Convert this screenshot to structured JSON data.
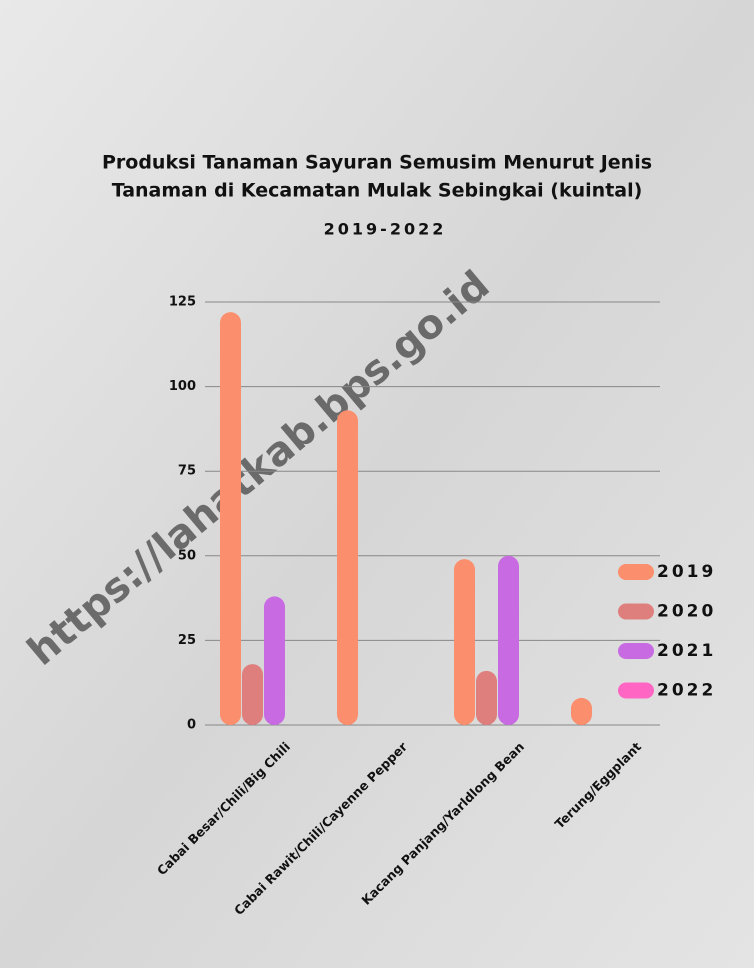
{
  "chart_data": {
    "type": "bar",
    "title": [
      "Produksi Tanaman Sayuran Semusim Menurut Jenis",
      "Tanaman di Kecamatan Mulak Sebingkai (kuintal)"
    ],
    "subtitle": "2019-2022",
    "watermark": "https://lahatkab.bps.go.id",
    "categories": [
      "Cabai Besar/Chili/Big Chili",
      "Cabai Rawit/Chili/Cayenne Pepper",
      "Kacang Panjang/Yarldlong Bean",
      "Terung/Eggplant"
    ],
    "series": [
      {
        "name": "2019",
        "color": "#fb8e6c",
        "values": [
          122,
          93,
          49,
          8
        ]
      },
      {
        "name": "2020",
        "color": "#df7f7d",
        "values": [
          18,
          0,
          16,
          0
        ]
      },
      {
        "name": "2021",
        "color": "#c86ae2",
        "values": [
          38,
          0,
          50,
          0
        ]
      },
      {
        "name": "2022",
        "color": "#ff66c4",
        "values": [
          0,
          0,
          0,
          0
        ]
      }
    ],
    "ylim": [
      0,
      125
    ],
    "yticks": [
      0,
      25,
      50,
      75,
      100,
      125
    ],
    "grid": true,
    "legend": "right"
  }
}
